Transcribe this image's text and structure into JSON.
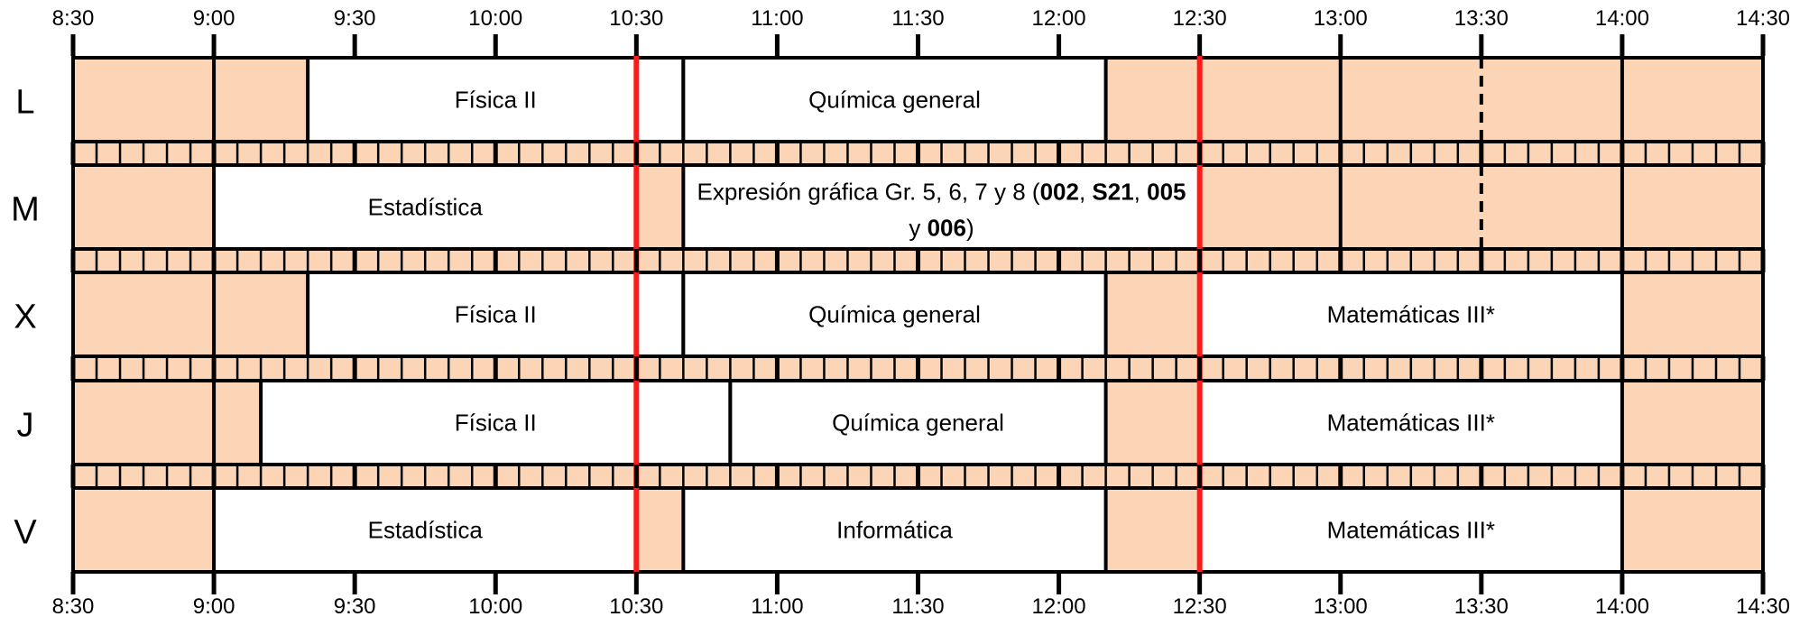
{
  "time_labels": [
    "8:30",
    "9:00",
    "9:30",
    "10:00",
    "10:30",
    "11:00",
    "11:30",
    "12:00",
    "12:30",
    "13:00",
    "13:30",
    "14:00",
    "14:30"
  ],
  "days": [
    {
      "label": "L",
      "classes": [
        {
          "name": "Física II",
          "start": "9:20",
          "end": "10:40"
        },
        {
          "name": "Química general",
          "start": "10:40",
          "end": "12:10"
        }
      ],
      "dividers": [
        "9:00",
        "13:00",
        "14:00"
      ],
      "dashed_dividers": [
        "13:30"
      ]
    },
    {
      "label": "M",
      "classes": [
        {
          "name": "Estadística",
          "start": "9:00",
          "end": "10:30"
        },
        {
          "name_parts": [
            {
              "text": "Expresión gráfica Gr. 5, 6, 7 y 8 (",
              "bold": false
            },
            {
              "text": "002",
              "bold": true
            },
            {
              "text": ", ",
              "bold": false
            },
            {
              "text": "S21",
              "bold": true
            },
            {
              "text": ", ",
              "bold": false
            },
            {
              "text": "005",
              "bold": true
            }
          ],
          "name_line2_parts": [
            {
              "text": "y ",
              "bold": false
            },
            {
              "text": "006",
              "bold": true
            },
            {
              "text": ")",
              "bold": false
            }
          ],
          "start": "10:40",
          "end": "12:30"
        }
      ],
      "dividers": [
        "13:00",
        "14:00"
      ],
      "dashed_dividers": [
        "13:30"
      ]
    },
    {
      "label": "X",
      "classes": [
        {
          "name": "Física II",
          "start": "9:20",
          "end": "10:40"
        },
        {
          "name": "Química general",
          "start": "10:40",
          "end": "12:10"
        },
        {
          "name": "Matemáticas III*",
          "start": "12:30",
          "end": "14:00"
        }
      ],
      "dividers": [
        "9:00"
      ],
      "dashed_dividers": []
    },
    {
      "label": "J",
      "classes": [
        {
          "name": "Física II",
          "start": "9:10",
          "end": "10:50"
        },
        {
          "name": "Química general",
          "start": "10:50",
          "end": "12:10"
        },
        {
          "name": "Matemáticas III*",
          "start": "12:30",
          "end": "14:00"
        }
      ],
      "dividers": [
        "9:00"
      ],
      "dashed_dividers": []
    },
    {
      "label": "V",
      "classes": [
        {
          "name": "Estadística",
          "start": "9:00",
          "end": "10:30"
        },
        {
          "name": "Informática",
          "start": "10:40",
          "end": "12:10"
        },
        {
          "name": "Matemáticas III*",
          "start": "12:30",
          "end": "14:00"
        }
      ],
      "dividers": [],
      "dashed_dividers": []
    }
  ],
  "red_lines": [
    "10:30",
    "12:30"
  ],
  "colors": {
    "free": "#fbd5b5",
    "class": "#ffffff",
    "border": "#000000",
    "red_line": "#ff1a1a"
  }
}
